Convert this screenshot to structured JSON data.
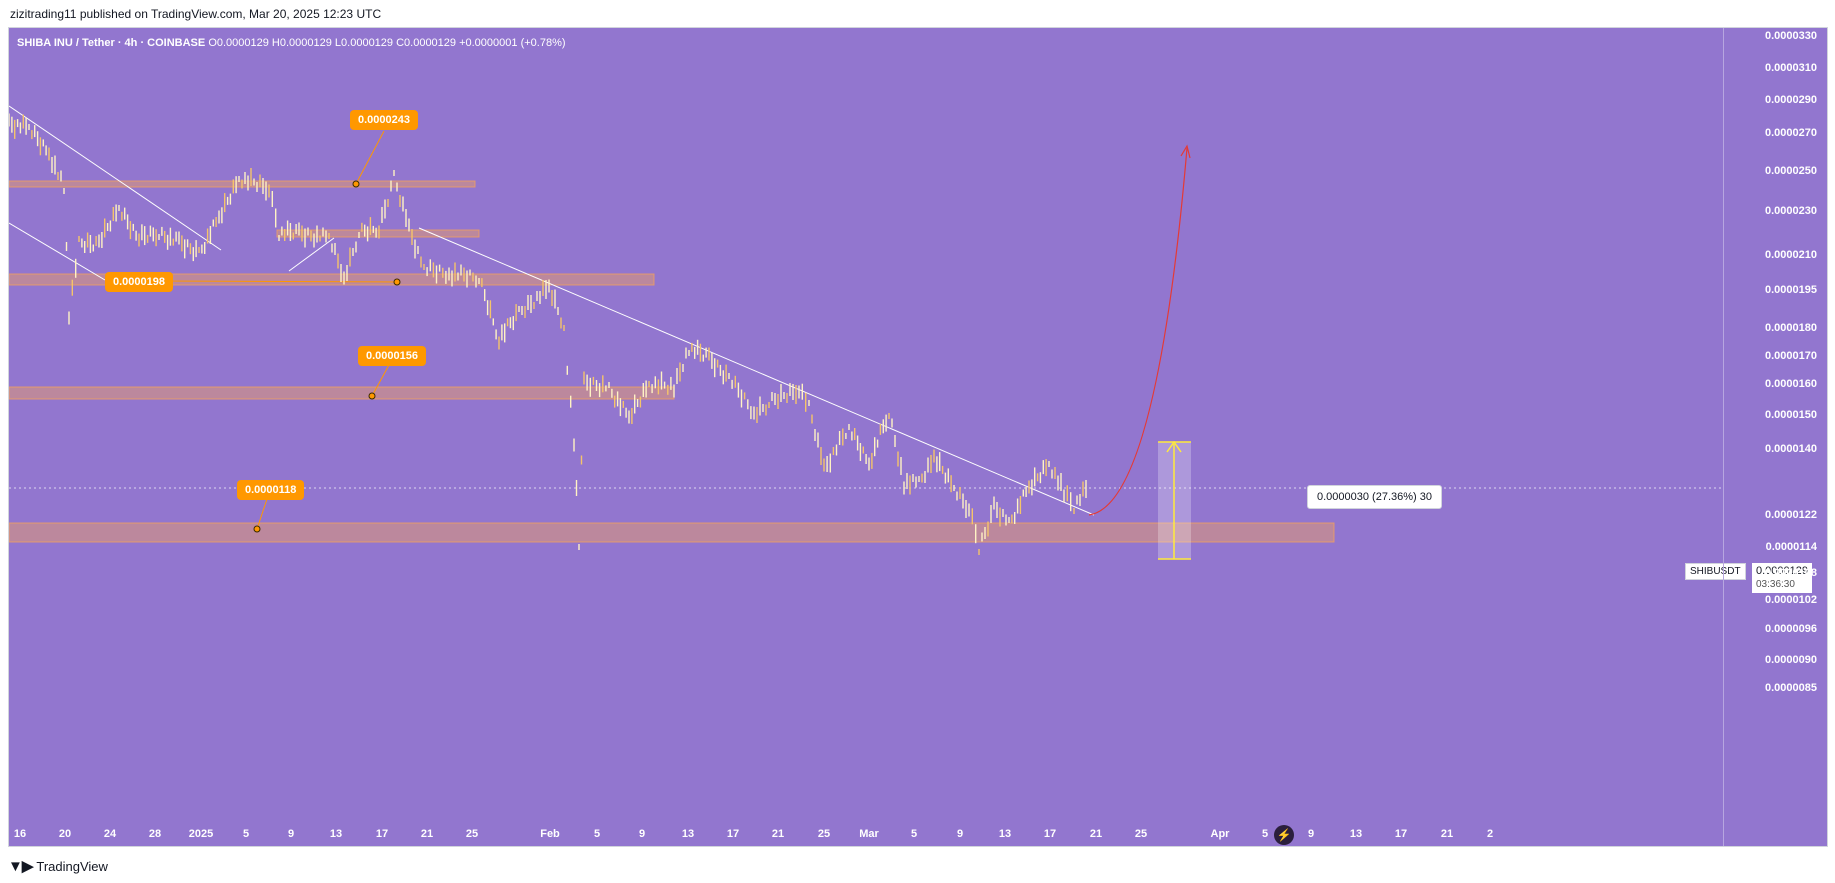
{
  "header": {
    "published": "zizitrading11 published on TradingView.com, Mar 20, 2025 12:23 UTC"
  },
  "legend": {
    "symbol": "SHIBA INU / Tether · 4h · COINBASE",
    "ohlc": "O0.0000129  H0.0000129  L0.0000129  C0.0000129  +0.0000001 (+0.78%)"
  },
  "price_axis": [
    {
      "label": "0.0000330",
      "value": 3.3e-05
    },
    {
      "label": "0.0000310",
      "value": 3.1e-05
    },
    {
      "label": "0.0000290",
      "value": 2.9e-05
    },
    {
      "label": "0.0000270",
      "value": 2.7e-05
    },
    {
      "label": "0.0000250",
      "value": 2.5e-05
    },
    {
      "label": "0.0000230",
      "value": 2.3e-05
    },
    {
      "label": "0.0000210",
      "value": 2.1e-05
    },
    {
      "label": "0.0000195",
      "value": 1.95e-05
    },
    {
      "label": "0.0000180",
      "value": 1.8e-05
    },
    {
      "label": "0.0000170",
      "value": 1.7e-05
    },
    {
      "label": "0.0000160",
      "value": 1.6e-05
    },
    {
      "label": "0.0000150",
      "value": 1.5e-05
    },
    {
      "label": "0.0000140",
      "value": 1.4e-05
    },
    {
      "label": "0.0000122",
      "value": 1.22e-05
    },
    {
      "label": "0.0000114",
      "value": 1.14e-05
    },
    {
      "label": "0.0000108",
      "value": 1.08e-05
    },
    {
      "label": "0.0000102",
      "value": 1.02e-05
    },
    {
      "label": "0.0000096",
      "value": 9.6e-06
    },
    {
      "label": "0.0000090",
      "value": 9e-06
    },
    {
      "label": "0.0000085",
      "value": 8.5e-06
    }
  ],
  "time_axis": [
    "16",
    "20",
    "24",
    "28",
    "2025",
    "5",
    "9",
    "13",
    "17",
    "21",
    "25",
    "Feb",
    "5",
    "9",
    "13",
    "17",
    "21",
    "25",
    "Mar",
    "5",
    "9",
    "13",
    "17",
    "21",
    "25",
    "Apr",
    "5",
    "9",
    "13",
    "17",
    "21",
    "2"
  ],
  "levels": [
    {
      "label": "0.0000243",
      "value": 2.43e-05
    },
    {
      "label": "0.0000198",
      "value": 1.98e-05
    },
    {
      "label": "0.0000156",
      "value": 1.56e-05
    },
    {
      "label": "0.0000118",
      "value": 1.18e-05
    }
  ],
  "measure": {
    "label": "0.0000030 (27.36%) 30"
  },
  "current": {
    "symbol": "SHIBUSDT",
    "price": "0.0000129",
    "countdown": "03:36:30"
  },
  "colors": {
    "background": "#9276cf",
    "zone": "#f0a060",
    "badge": "#ff9800",
    "projection": "#e53935",
    "measure": "#ffeb3b",
    "candle": "#fff3c4"
  },
  "footer": {
    "brand": "TradingView",
    "logo_icon": "tradingview-logo-icon"
  }
}
